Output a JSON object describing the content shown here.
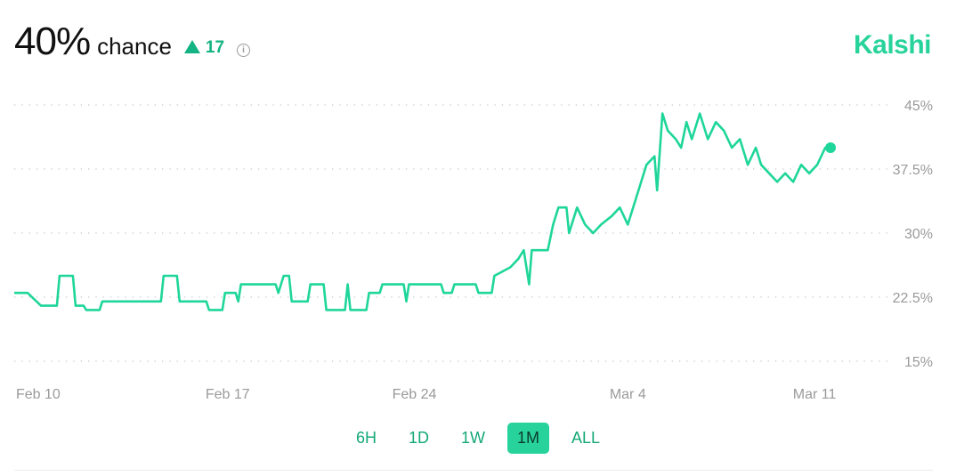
{
  "header": {
    "probability": "40%",
    "chance_label": "chance",
    "delta": "17",
    "info_icon": "info-icon",
    "brand": "Kalshi"
  },
  "colors": {
    "accent": "#28d39b",
    "line": "#1fd69a",
    "up": "#14b383",
    "grid": "#c8c8c8",
    "axis_text": "#9a9a9a"
  },
  "ranges": {
    "options": [
      "6H",
      "1D",
      "1W",
      "1M",
      "ALL"
    ],
    "selected": "1M"
  },
  "chart_data": {
    "type": "line",
    "x_ticks": [
      "Feb 10",
      "Feb 17",
      "Feb 24",
      "Mar 4",
      "Mar 11"
    ],
    "y_ticks": [
      "45%",
      "37.5%",
      "30%",
      "22.5%",
      "15%"
    ],
    "y_tick_values": [
      45,
      37.5,
      30,
      22.5,
      15
    ],
    "ylim": [
      15,
      45
    ],
    "grid": "horizontal dotted",
    "x_start": "2025-02-09",
    "x_end": "2025-03-13",
    "series": [
      {
        "values": [
          [
            "2025-02-09",
            23
          ],
          [
            "2025-02-09.5",
            23
          ],
          [
            "2025-02-10",
            21.5
          ],
          [
            "2025-02-10.6",
            21.5
          ],
          [
            "2025-02-10.7",
            25
          ],
          [
            "2025-02-11.2",
            25
          ],
          [
            "2025-02-11.3",
            21.5
          ],
          [
            "2025-02-11.6",
            21.5
          ],
          [
            "2025-02-11.7",
            21
          ],
          [
            "2025-02-12.2",
            21
          ],
          [
            "2025-02-12.3",
            22
          ],
          [
            "2025-02-13.5",
            22
          ],
          [
            "2025-02-14.5",
            22
          ],
          [
            "2025-02-14.6",
            25
          ],
          [
            "2025-02-15.1",
            25
          ],
          [
            "2025-02-15.2",
            22
          ],
          [
            "2025-02-16.2",
            22
          ],
          [
            "2025-02-16.3",
            21
          ],
          [
            "2025-02-16.8",
            21
          ],
          [
            "2025-02-16.9",
            23
          ],
          [
            "2025-02-17.3",
            23
          ],
          [
            "2025-02-17.4",
            22
          ],
          [
            "2025-02-17.5",
            24
          ],
          [
            "2025-02-18.8",
            24
          ],
          [
            "2025-02-18.9",
            23
          ],
          [
            "2025-02-19.1",
            25
          ],
          [
            "2025-02-19.3",
            25
          ],
          [
            "2025-02-19.4",
            22
          ],
          [
            "2025-02-20.0",
            22
          ],
          [
            "2025-02-20.1",
            24
          ],
          [
            "2025-02-20.6",
            24
          ],
          [
            "2025-02-20.7",
            21
          ],
          [
            "2025-02-21.4",
            21
          ],
          [
            "2025-02-21.5",
            24
          ],
          [
            "2025-02-21.6",
            21
          ],
          [
            "2025-02-22.2",
            21
          ],
          [
            "2025-02-22.3",
            23
          ],
          [
            "2025-02-22.7",
            23
          ],
          [
            "2025-02-22.8",
            24
          ],
          [
            "2025-02-23.6",
            24
          ],
          [
            "2025-02-23.7",
            22
          ],
          [
            "2025-02-23.8",
            24
          ],
          [
            "2025-02-25.0",
            24
          ],
          [
            "2025-02-25.1",
            23
          ],
          [
            "2025-02-25.4",
            23
          ],
          [
            "2025-02-25.5",
            24
          ],
          [
            "2025-02-26.3",
            24
          ],
          [
            "2025-02-26.4",
            23
          ],
          [
            "2025-02-26.9",
            23
          ],
          [
            "2025-02-27.0",
            25
          ],
          [
            "2025-02-27.6",
            26
          ],
          [
            "2025-02-27.9",
            27
          ],
          [
            "2025-02-28.1",
            28
          ],
          [
            "2025-02-28.3",
            24
          ],
          [
            "2025-02-28.4",
            28
          ],
          [
            "2025-03-01.0",
            28
          ],
          [
            "2025-03-01.2",
            31
          ],
          [
            "2025-03-01.4",
            33
          ],
          [
            "2025-03-01.7",
            33
          ],
          [
            "2025-03-01.8",
            30
          ],
          [
            "2025-03-02.1",
            33
          ],
          [
            "2025-03-02.4",
            31
          ],
          [
            "2025-03-02.7",
            30
          ],
          [
            "2025-03-03.0",
            31
          ],
          [
            "2025-03-03.4",
            32
          ],
          [
            "2025-03-03.7",
            33
          ],
          [
            "2025-03-04.0",
            31
          ],
          [
            "2025-03-04.3",
            34
          ],
          [
            "2025-03-04.5",
            36
          ],
          [
            "2025-03-04.7",
            38
          ],
          [
            "2025-03-05.0",
            39
          ],
          [
            "2025-03-05.1",
            35
          ],
          [
            "2025-03-05.3",
            44
          ],
          [
            "2025-03-05.5",
            42
          ],
          [
            "2025-03-05.8",
            41
          ],
          [
            "2025-03-06.0",
            40
          ],
          [
            "2025-03-06.2",
            43
          ],
          [
            "2025-03-06.4",
            41
          ],
          [
            "2025-03-06.7",
            44
          ],
          [
            "2025-03-07.0",
            41
          ],
          [
            "2025-03-07.3",
            43
          ],
          [
            "2025-03-07.6",
            42
          ],
          [
            "2025-03-07.9",
            40
          ],
          [
            "2025-03-08.2",
            41
          ],
          [
            "2025-03-08.5",
            38
          ],
          [
            "2025-03-08.8",
            40
          ],
          [
            "2025-03-09.0",
            38
          ],
          [
            "2025-03-09.3",
            37
          ],
          [
            "2025-03-09.6",
            36
          ],
          [
            "2025-03-09.9",
            37
          ],
          [
            "2025-03-10.2",
            36
          ],
          [
            "2025-03-10.5",
            38
          ],
          [
            "2025-03-10.8",
            37
          ],
          [
            "2025-03-11.1",
            38
          ],
          [
            "2025-03-11.4",
            40
          ],
          [
            "2025-03-11.6",
            40
          ]
        ]
      }
    ]
  }
}
